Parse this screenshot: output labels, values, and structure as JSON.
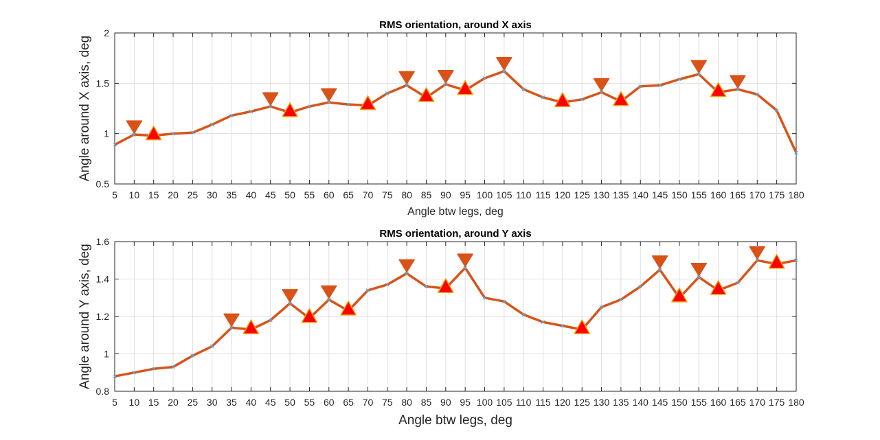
{
  "chart_data": [
    {
      "type": "line",
      "title": "RMS orientation, around X axis",
      "xlabel": "Angle btw legs, deg",
      "ylabel": "Angle around X axis, deg",
      "xlim": [
        5,
        180
      ],
      "ylim": [
        0.5,
        2
      ],
      "xticks": [
        5,
        10,
        15,
        20,
        25,
        30,
        35,
        40,
        45,
        50,
        55,
        60,
        65,
        70,
        75,
        80,
        85,
        90,
        95,
        100,
        105,
        110,
        115,
        120,
        125,
        130,
        135,
        140,
        145,
        150,
        155,
        160,
        165,
        170,
        175,
        180
      ],
      "yticks": [
        0.5,
        1,
        1.5,
        2
      ],
      "ytick_labels": [
        "0.5",
        "1",
        "1.5",
        "2"
      ],
      "grid": true,
      "x": [
        5,
        10,
        15,
        20,
        25,
        30,
        35,
        40,
        45,
        50,
        55,
        60,
        65,
        70,
        75,
        80,
        85,
        90,
        95,
        100,
        105,
        110,
        115,
        120,
        125,
        130,
        135,
        140,
        145,
        150,
        155,
        160,
        165,
        170,
        175,
        180
      ],
      "y": [
        0.89,
        0.99,
        0.98,
        1.0,
        1.01,
        1.09,
        1.18,
        1.22,
        1.27,
        1.21,
        1.27,
        1.31,
        1.29,
        1.28,
        1.4,
        1.48,
        1.36,
        1.49,
        1.43,
        1.55,
        1.62,
        1.44,
        1.36,
        1.31,
        1.34,
        1.41,
        1.32,
        1.47,
        1.48,
        1.54,
        1.59,
        1.41,
        1.44,
        1.39,
        1.23,
        0.81
      ],
      "maxima_x": [
        10,
        45,
        60,
        80,
        90,
        105,
        130,
        155,
        165
      ],
      "minima_x": [
        15,
        50,
        70,
        85,
        95,
        120,
        135,
        160
      ],
      "line_color": "#d95319",
      "marker_fill": "#ff0000"
    },
    {
      "type": "line",
      "title": "RMS orientation, around Y axis",
      "xlabel": "Angle btw legs, deg",
      "ylabel": "Angle around Y axis, deg",
      "xlim": [
        5,
        180
      ],
      "ylim": [
        0.8,
        1.6
      ],
      "xticks": [
        5,
        10,
        15,
        20,
        25,
        30,
        35,
        40,
        45,
        50,
        55,
        60,
        65,
        70,
        75,
        80,
        85,
        90,
        95,
        100,
        105,
        110,
        115,
        120,
        125,
        130,
        135,
        140,
        145,
        150,
        155,
        160,
        165,
        170,
        175,
        180
      ],
      "yticks": [
        0.8,
        1,
        1.2,
        1.4,
        1.6
      ],
      "ytick_labels": [
        "0.8",
        "1",
        "1.2",
        "1.4",
        "1.6"
      ],
      "grid": true,
      "x": [
        5,
        10,
        15,
        20,
        25,
        30,
        35,
        40,
        45,
        50,
        55,
        60,
        65,
        70,
        75,
        80,
        85,
        90,
        95,
        100,
        105,
        110,
        115,
        120,
        125,
        130,
        135,
        140,
        145,
        150,
        155,
        160,
        165,
        170,
        175,
        180
      ],
      "y": [
        0.88,
        0.9,
        0.92,
        0.93,
        0.99,
        1.04,
        1.14,
        1.13,
        1.18,
        1.27,
        1.19,
        1.29,
        1.23,
        1.34,
        1.37,
        1.43,
        1.36,
        1.35,
        1.46,
        1.3,
        1.28,
        1.21,
        1.17,
        1.15,
        1.13,
        1.25,
        1.29,
        1.36,
        1.45,
        1.3,
        1.41,
        1.34,
        1.38,
        1.5,
        1.48,
        1.5
      ],
      "maxima_x": [
        35,
        50,
        60,
        80,
        95,
        145,
        155,
        170
      ],
      "minima_x": [
        40,
        55,
        65,
        90,
        125,
        150,
        160,
        175
      ],
      "line_color": "#d95319",
      "marker_fill": "#ff0000"
    }
  ]
}
